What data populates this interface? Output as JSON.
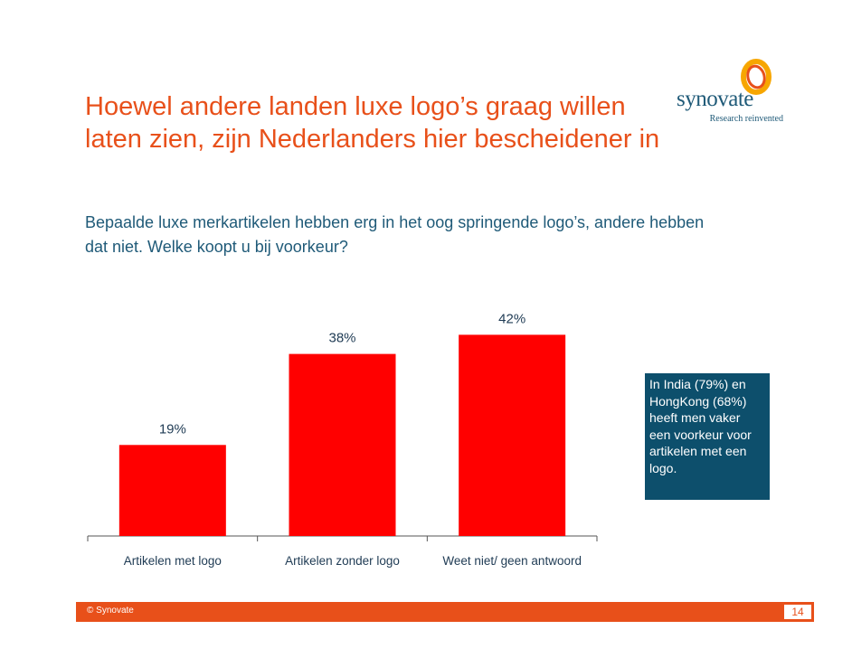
{
  "slide": {
    "title": "Hoewel andere landen luxe logo’s graag willen laten zien, zijn Nederlanders hier bescheidener in",
    "subtitle": "Bepaalde luxe merkartikelen hebben erg in het oog springende logo’s, andere hebben dat niet. Welke koopt u bij voorkeur?",
    "callout": "In India (79%) en HongKong (68%) heeft men vaker een voorkeur voor artikelen met een logo.",
    "footer_copyright": "© Synovate",
    "page_number": "14"
  },
  "logo": {
    "name": "synovate",
    "tagline": "Research reinvented",
    "icon": "synovate-ring-logo"
  },
  "colors": {
    "accent": "#e8501a",
    "bar": "#ff0000",
    "text_blue": "#1f5a78",
    "callout_bg": "#0d4f6c"
  },
  "chart_data": {
    "type": "bar",
    "categories": [
      "Artikelen met logo",
      "Artikelen zonder logo",
      "Weet niet/ geen antwoord"
    ],
    "values": [
      19,
      38,
      42
    ],
    "data_labels": [
      "19%",
      "38%",
      "42%"
    ],
    "unit": "%",
    "ylim": [
      0,
      50
    ],
    "grid": false,
    "legend": "none"
  }
}
